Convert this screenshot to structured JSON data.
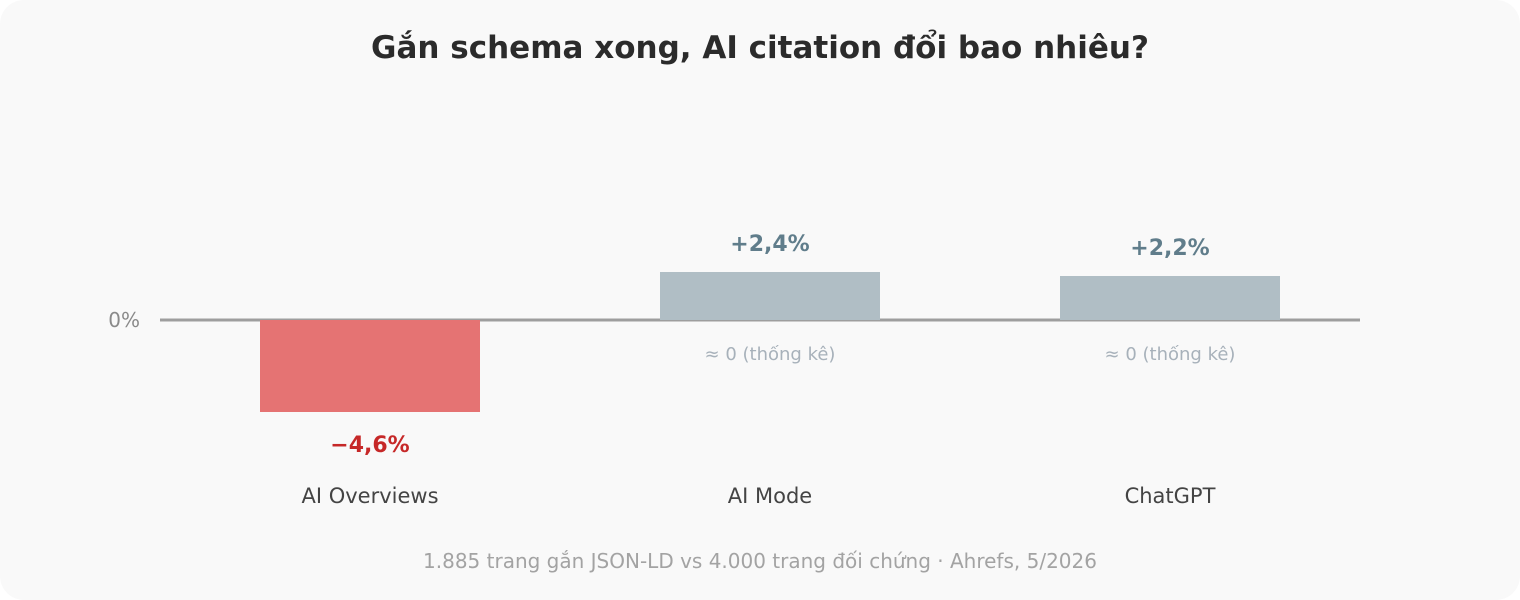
{
  "chart_data": {
    "type": "bar",
    "title": "Gắn schema xong, AI citation đổi bao nhiêu?",
    "categories": [
      "AI Overviews",
      "AI Mode",
      "ChatGPT"
    ],
    "values": [
      -4.6,
      2.4,
      2.2
    ],
    "value_labels": [
      "−4,6%",
      "+2,4%",
      "+2,2%"
    ],
    "notes": [
      "",
      "≈ 0 (thống kê)",
      "≈ 0 (thống kê)"
    ],
    "zero_label": "0%",
    "ylim": [
      -4.6,
      2.4
    ],
    "grid": false,
    "colors": {
      "negative_bar": "#e57373",
      "negative_label": "#c62828",
      "neutral_bar": "#b0bec5",
      "neutral_label": "#607d8b",
      "note": "#a7b1ba",
      "baseline": "#9e9e9e"
    }
  },
  "footnote": "1.885 trang gắn JSON-LD vs 4.000 trang đối chứng · Ahrefs, 5/2026"
}
